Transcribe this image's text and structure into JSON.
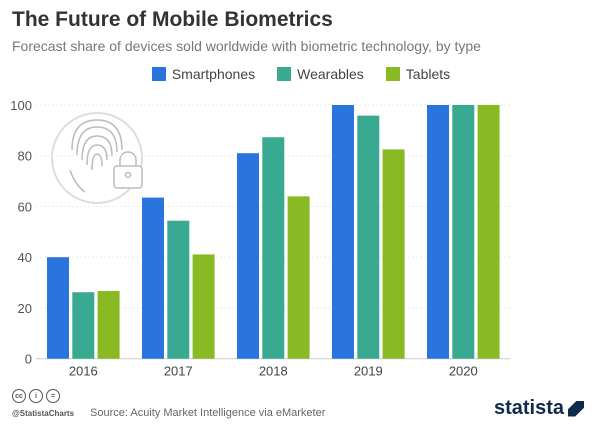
{
  "chart_data": {
    "type": "bar",
    "title": "The Future of Mobile Biometrics",
    "subtitle": "Forecast share of devices sold worldwide with biometric technology, by type",
    "categories": [
      "2016",
      "2017",
      "2018",
      "2019",
      "2020"
    ],
    "series": [
      {
        "name": "Smartphones",
        "color": "#2a75dd",
        "values": [
          40,
          63.5,
          81,
          100,
          100
        ]
      },
      {
        "name": "Wearables",
        "color": "#3aa992",
        "values": [
          26.2,
          54.4,
          87.3,
          95.8,
          100
        ]
      },
      {
        "name": "Tablets",
        "color": "#8aba23",
        "values": [
          26.7,
          41.1,
          64,
          82.5,
          100
        ]
      }
    ],
    "ylim": [
      0,
      100
    ],
    "yticks": [
      0,
      20,
      40,
      60,
      80,
      100
    ],
    "grid": true,
    "legend": "top",
    "xlabel": "",
    "ylabel": ""
  },
  "footer": {
    "handle": "@StatistaCharts",
    "source": "Source: Acuity Market Intelligence via eMarketer",
    "license_icons": [
      "cc",
      "by",
      "nd"
    ],
    "logo": "statista"
  },
  "icon": "fingerprint-lock-icon"
}
